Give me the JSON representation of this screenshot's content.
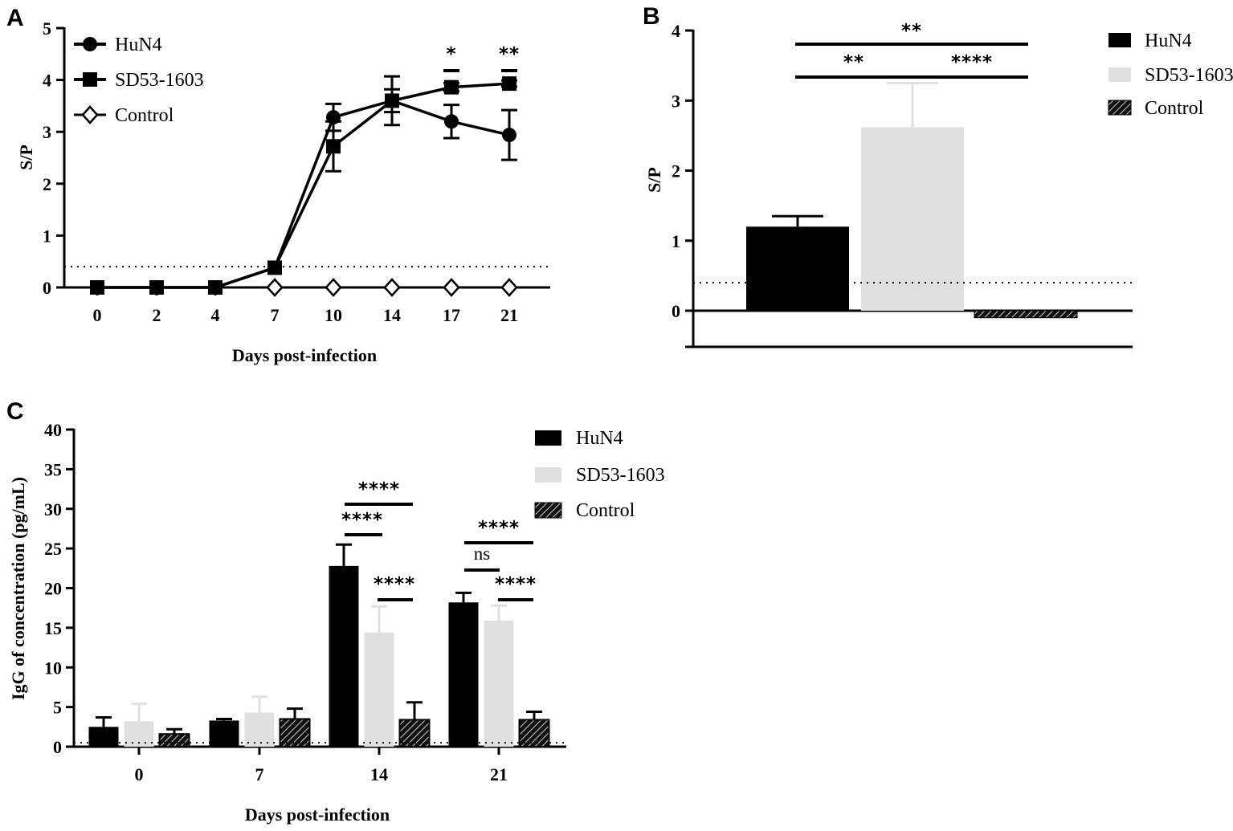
{
  "chart_data": [
    {
      "panel": "A",
      "type": "line",
      "xlabel": "Days post-infection",
      "ylabel": "S/P",
      "x": [
        0,
        2,
        4,
        7,
        10,
        14,
        17,
        21
      ],
      "xticks": [
        "0",
        "2",
        "4",
        "7",
        "10",
        "14",
        "17",
        "21"
      ],
      "ylim": [
        0,
        5
      ],
      "yticks": [
        "0",
        "1",
        "2",
        "3",
        "4",
        "5"
      ],
      "cutoff": 0.4,
      "series": [
        {
          "name": "HuN4",
          "marker": "circle",
          "values": [
            0,
            0,
            0,
            0.38,
            3.28,
            3.6,
            3.2,
            2.94
          ],
          "err": [
            0,
            0,
            0,
            0,
            0.26,
            0.47,
            0.32,
            0.48
          ]
        },
        {
          "name": "SD53-1603",
          "marker": "square",
          "values": [
            0,
            0,
            0,
            0.38,
            2.72,
            3.6,
            3.86,
            3.93
          ],
          "err": [
            0,
            0,
            0,
            0,
            0.48,
            0.22,
            0.08,
            0.06
          ]
        },
        {
          "name": "Control",
          "marker": "diamond",
          "values": [
            null,
            null,
            null,
            0,
            0,
            0,
            0,
            0
          ],
          "err": [
            0,
            0,
            0,
            0,
            0,
            0,
            0,
            0
          ]
        }
      ],
      "significance": [
        {
          "x": "17",
          "label": "*"
        },
        {
          "x": "21",
          "label": "**"
        }
      ]
    },
    {
      "panel": "B",
      "type": "bar",
      "ylabel": "S/P",
      "ylim": [
        -0.5,
        4
      ],
      "yticks": [
        "0",
        "1",
        "2",
        "3",
        "4"
      ],
      "cutoff": 0.4,
      "categories": [
        "HuN4",
        "SD53-1603",
        "Control"
      ],
      "values": [
        1.2,
        2.62,
        -0.1
      ],
      "err": [
        0.15,
        0.63,
        0
      ],
      "significance": [
        {
          "from": "HuN4",
          "to": "Control",
          "label": "**"
        },
        {
          "from": "HuN4",
          "to": "SD53-1603",
          "label": "**"
        },
        {
          "from": "SD53-1603",
          "to": "Control",
          "label": "****"
        }
      ]
    },
    {
      "panel": "C",
      "type": "bar",
      "xlabel": "Days post-infection",
      "ylabel": "IgG of concentration (pg/mL)",
      "categories": [
        "0",
        "7",
        "14",
        "21"
      ],
      "ylim": [
        0,
        40
      ],
      "yticks": [
        "0",
        "5",
        "10",
        "15",
        "20",
        "25",
        "30",
        "35",
        "40"
      ],
      "cutoff": 0.5,
      "series": [
        {
          "name": "HuN4",
          "values": [
            2.5,
            3.3,
            22.8,
            18.2
          ],
          "err": [
            1.2,
            0.2,
            2.7,
            1.2
          ]
        },
        {
          "name": "SD53-1603",
          "values": [
            3.2,
            4.3,
            14.4,
            15.9
          ],
          "err": [
            2.2,
            2.0,
            3.3,
            1.9
          ]
        },
        {
          "name": "Control",
          "values": [
            1.6,
            3.5,
            3.4,
            3.4
          ],
          "err": [
            0.6,
            1.3,
            2.2,
            1.0
          ]
        }
      ],
      "significance": [
        {
          "category": "14",
          "from": "HuN4",
          "to": "Control",
          "label": "****"
        },
        {
          "category": "14",
          "from": "HuN4",
          "to": "SD53-1603",
          "label": "****"
        },
        {
          "category": "14",
          "from": "SD53-1603",
          "to": "Control",
          "label": "****"
        },
        {
          "category": "21",
          "from": "HuN4",
          "to": "Control",
          "label": "****"
        },
        {
          "category": "21",
          "from": "HuN4",
          "to": "SD53-1603",
          "label": "ns"
        },
        {
          "category": "21",
          "from": "SD53-1603",
          "to": "Control",
          "label": "****"
        }
      ]
    }
  ],
  "panel_labels": {
    "a": "A",
    "b": "B",
    "c": "C"
  },
  "legend": {
    "hun4": "HuN4",
    "sd53": "SD53-1603",
    "control": "Control"
  },
  "colors": {
    "hun4": "#000000",
    "sd53": "#e0e0e0",
    "control": "#111111"
  }
}
